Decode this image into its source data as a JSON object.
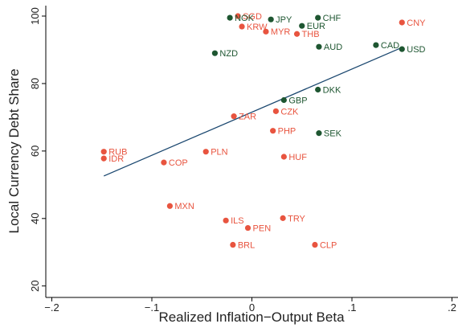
{
  "chart_data": {
    "type": "scatter",
    "x_label": "Realized Inflation−Output Beta",
    "y_label": "Local Currency Debt Share",
    "xlim": [
      -0.206,
      0.206
    ],
    "ylim": [
      16.6,
      103.1
    ],
    "xticks": [
      {
        "value": -0.2,
        "label": "−.2"
      },
      {
        "value": -0.1,
        "label": "−.1"
      },
      0,
      {
        "value": 0.1,
        "label": ".1"
      },
      {
        "value": 0.2,
        "label": ".2"
      }
    ],
    "yticks": [
      20,
      40,
      60,
      80,
      100
    ],
    "grid": false,
    "series": [
      {
        "color": "#e8543f",
        "labels": [
          "SGD",
          "KRW",
          "MYR",
          "THB",
          "CNY",
          "ZAR",
          "CZK",
          "PHP",
          "HUF",
          "RUB",
          "IDR",
          "PLN",
          "COP",
          "MXN",
          "ILS",
          "PEN",
          "TRY",
          "BRL",
          "CLP"
        ],
        "x": [
          -0.014,
          -0.01,
          0.014,
          0.045,
          0.15,
          -0.018,
          0.024,
          0.021,
          0.032,
          -0.148,
          -0.148,
          -0.046,
          -0.088,
          -0.082,
          -0.026,
          -0.004,
          0.031,
          -0.019,
          0.063
        ],
        "y": [
          100,
          96.9,
          95.4,
          94.7,
          98.1,
          70.3,
          71.8,
          66.0,
          58.3,
          59.8,
          57.8,
          59.8,
          56.6,
          43.7,
          39.4,
          37.2,
          40.1,
          32.2,
          32.2
        ]
      },
      {
        "color": "#1e5631",
        "labels": [
          "NOK",
          "JPY",
          "CHF",
          "EUR",
          "AUD",
          "CAD",
          "USD",
          "NZD",
          "GBP",
          "DKK",
          "SEK"
        ],
        "x": [
          -0.022,
          0.019,
          0.066,
          0.05,
          0.067,
          0.124,
          0.15,
          -0.037,
          0.032,
          0.066,
          0.067
        ],
        "y": [
          99.5,
          99.0,
          99.5,
          97.1,
          90.9,
          91.4,
          90.2,
          89.0,
          75.1,
          78.2,
          65.3
        ]
      }
    ],
    "fit_line": {
      "color": "#1a476f",
      "x": [
        -0.148,
        0.15
      ],
      "y": [
        52.6,
        90.7
      ]
    }
  }
}
